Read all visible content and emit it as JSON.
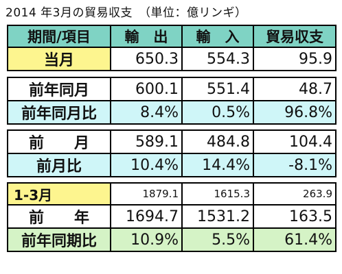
{
  "title": "2014 年3月の貿易収支　（単位：億リンギ）",
  "header": [
    "期間/項目",
    "輸　出",
    "輸　入",
    "貿易収支"
  ],
  "section1": {
    "row": {
      "label": "当月",
      "export": "650.3",
      "import": "554.3",
      "balance": "95.9"
    }
  },
  "section2": {
    "row1": {
      "label": "前年同月",
      "export": "600.1",
      "import": "551.4",
      "balance": "48.7"
    },
    "row2": {
      "label": "前年同月比",
      "export": "8.4%",
      "import": "0.5%",
      "balance": "96.8%"
    }
  },
  "section3": {
    "row1": {
      "label": "前　　月",
      "export": "589.1",
      "import": "484.8",
      "balance": "104.4"
    },
    "row2": {
      "label": "前月比",
      "export": "10.4%",
      "import": "14.4%",
      "balance": "-8.1%"
    }
  },
  "section4": {
    "row1": {
      "label": "1-3月",
      "export": "1879.1",
      "import": "1615.3",
      "balance": "263.9"
    },
    "row2": {
      "label": "前　　年",
      "export": "1694.7",
      "import": "1531.2",
      "balance": "163.5"
    },
    "row3": {
      "label": "前年同期比",
      "export": "10.9%",
      "import": "5.5%",
      "balance": "61.4%"
    }
  },
  "colors": {
    "header_bg": "#7fd3c4",
    "current_bg": "#fdf58f",
    "ratio_bg": "#cff6f8",
    "period_ratio_bg": "#d5f3c6"
  }
}
